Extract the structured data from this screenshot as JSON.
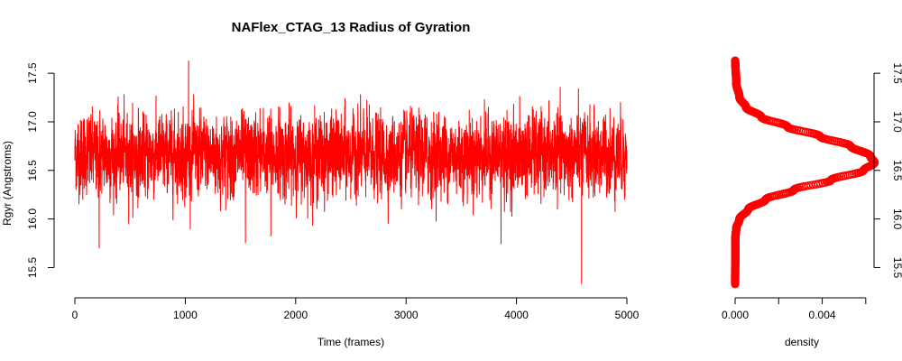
{
  "chart_data": [
    {
      "type": "line",
      "title": "NAFlex_CTAG_13 Radius of Gyration",
      "xlabel": "Time (frames)",
      "ylabel": "Rgyr (Angstroms)",
      "xlim": [
        0,
        5000
      ],
      "ylim": [
        15.3,
        17.65
      ],
      "x_ticks": [
        "0",
        "1000",
        "2000",
        "3000",
        "4000",
        "5000"
      ],
      "y_ticks": [
        "15.5",
        "16.0",
        "16.5",
        "17.0",
        "17.5"
      ],
      "grid": false,
      "color": "#ff0000",
      "summary": {
        "frames": 5000,
        "mean": 16.66,
        "sd": 0.2,
        "min": 15.33,
        "max": 17.63
      },
      "notable_points": [
        {
          "x": 1030,
          "y": 17.63
        },
        {
          "x": 220,
          "y": 15.7
        },
        {
          "x": 1545,
          "y": 15.75
        },
        {
          "x": 1775,
          "y": 15.82
        },
        {
          "x": 3860,
          "y": 15.74
        },
        {
          "x": 4590,
          "y": 15.33
        }
      ]
    },
    {
      "type": "line",
      "title": "",
      "xlabel": "density",
      "ylabel": "",
      "xlim": [
        0,
        0.0058
      ],
      "ylim": [
        15.3,
        17.65
      ],
      "x_ticks": [
        "0.000",
        "0.004"
      ],
      "y_ticks": [
        "15.5",
        "16.0",
        "16.5",
        "17.0",
        "17.5"
      ],
      "color": "#ff0000",
      "density_curve": [
        {
          "rgyr": 15.3,
          "density": 0.0
        },
        {
          "rgyr": 15.8,
          "density": 1e-05
        },
        {
          "rgyr": 15.9,
          "density": 5e-05
        },
        {
          "rgyr": 16.0,
          "density": 0.0002
        },
        {
          "rgyr": 16.1,
          "density": 0.0006
        },
        {
          "rgyr": 16.2,
          "density": 0.0014
        },
        {
          "rgyr": 16.3,
          "density": 0.0027
        },
        {
          "rgyr": 16.4,
          "density": 0.0044
        },
        {
          "rgyr": 16.5,
          "density": 0.0059
        },
        {
          "rgyr": 16.58,
          "density": 0.0064
        },
        {
          "rgyr": 16.65,
          "density": 0.0062
        },
        {
          "rgyr": 16.75,
          "density": 0.0053
        },
        {
          "rgyr": 16.85,
          "density": 0.0039
        },
        {
          "rgyr": 16.95,
          "density": 0.0024
        },
        {
          "rgyr": 17.05,
          "density": 0.0012
        },
        {
          "rgyr": 17.15,
          "density": 0.0005
        },
        {
          "rgyr": 17.25,
          "density": 0.0002
        },
        {
          "rgyr": 17.4,
          "density": 5e-05
        },
        {
          "rgyr": 17.65,
          "density": 0.0
        }
      ]
    }
  ]
}
